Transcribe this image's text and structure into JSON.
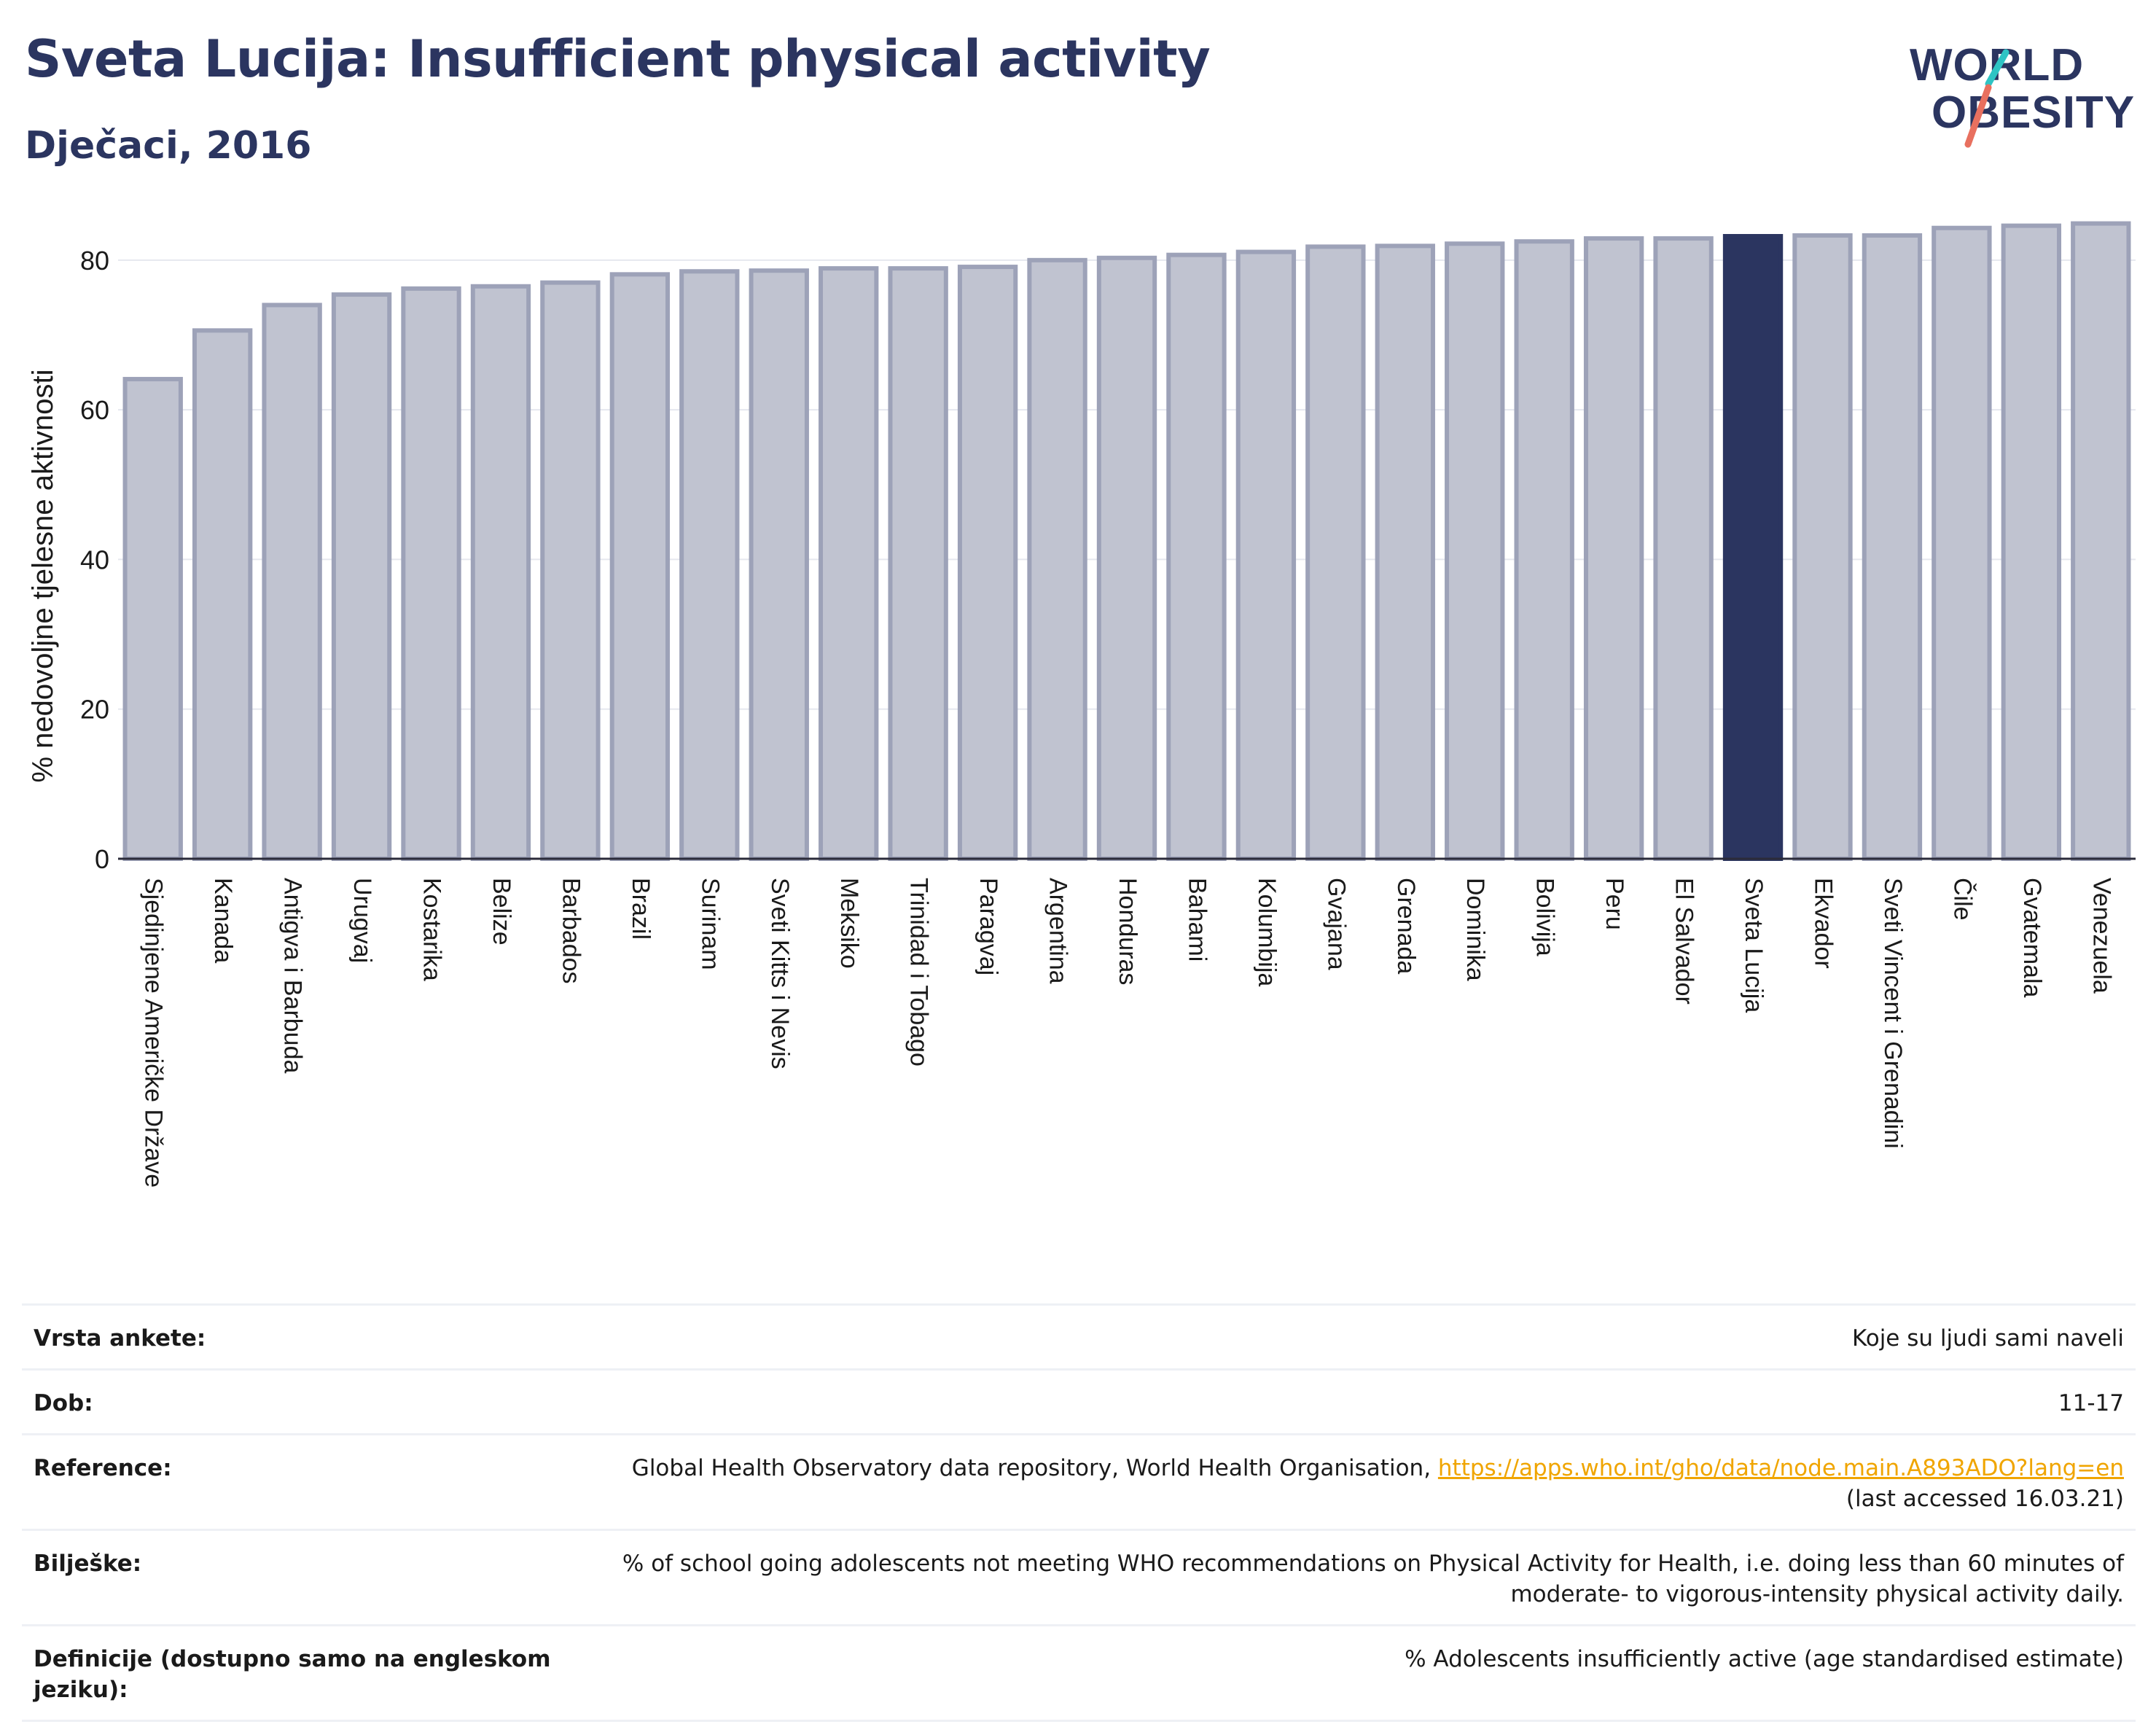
{
  "header": {
    "title": "Sveta Lucija: Insufficient physical activity",
    "subtitle": "Dječaci, 2016"
  },
  "logo": {
    "line1": "WORLD",
    "line2": "OBESITY",
    "icon": "world-obesity-logo"
  },
  "colors": {
    "bar": "#c0c3d0",
    "bar_border": "#9da2b8",
    "highlight": "#2b3560",
    "title": "#2b3560",
    "link": "#f0a500"
  },
  "chart_data": {
    "type": "bar",
    "ylabel": "% nedovoljne tjelesne aktivnosti",
    "xlabel": "",
    "ylim": [
      0,
      87
    ],
    "yticks": [
      0,
      20,
      40,
      60,
      80
    ],
    "grid": true,
    "highlight": "Sveta Lucija",
    "categories": [
      "Sjedinjene Američke Države",
      "Kanada",
      "Antigva i Barbuda",
      "Urugvaj",
      "Kostarika",
      "Belize",
      "Barbados",
      "Brazil",
      "Surinam",
      "Sveti Kitts i Nevis",
      "Meksiko",
      "Trinidad i Tobago",
      "Paragvaj",
      "Argentina",
      "Honduras",
      "Bahami",
      "Kolumbija",
      "Gvajana",
      "Grenada",
      "Dominika",
      "Bolivija",
      "Peru",
      "El Salvador",
      "Sveta Lucija",
      "Ekvador",
      "Sveti Vincent i Grenadini",
      "Čile",
      "Gvatemala",
      "Venezuela"
    ],
    "values": [
      64.1,
      70.6,
      74.0,
      75.4,
      76.2,
      76.5,
      77.0,
      78.1,
      78.5,
      78.6,
      78.9,
      78.9,
      79.1,
      80.0,
      80.3,
      80.7,
      81.1,
      81.8,
      81.9,
      82.2,
      82.5,
      82.9,
      82.9,
      83.2,
      83.3,
      83.3,
      84.3,
      84.6,
      84.9
    ]
  },
  "details": [
    {
      "label": "Vrsta ankete:",
      "value": "Koje su ljudi sami naveli"
    },
    {
      "label": "Dob:",
      "value": "11-17"
    },
    {
      "label": "Reference:",
      "value": "Global Health Observatory data repository, World Health Organisation, ",
      "link": "https://apps.who.int/gho/data/node.main.A893ADO?lang=en",
      "value2": "(last accessed 16.03.21)"
    },
    {
      "label": "Bilješke:",
      "value": "% of school going adolescents not meeting WHO recommendations on Physical Activity for Health, i.e. doing less than 60 minutes of moderate- to vigorous-intensity physical activity daily."
    },
    {
      "label": "Definicije (dostupno samo na engleskom jeziku):",
      "value": "% Adolescents insufficiently active (age standardised estimate)"
    }
  ]
}
